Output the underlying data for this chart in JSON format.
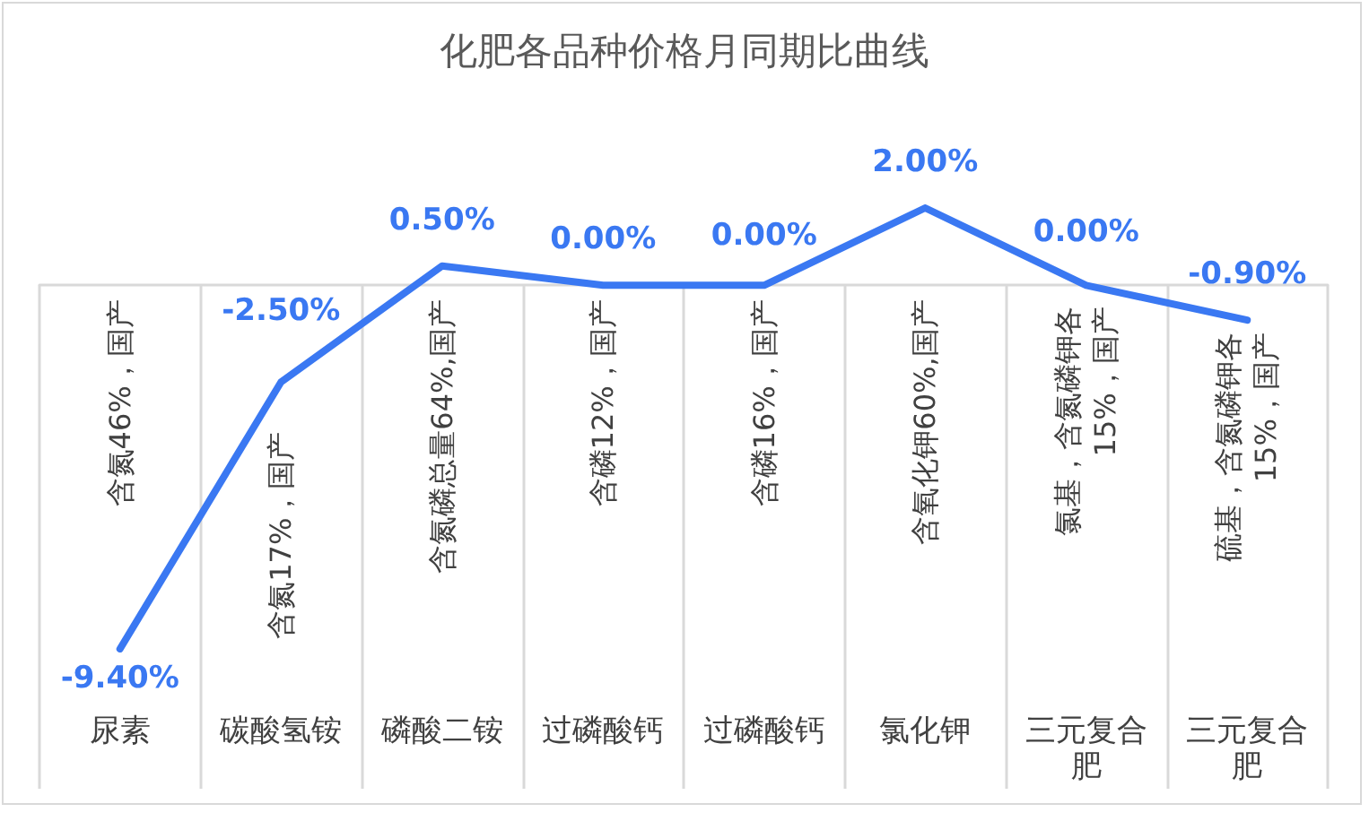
{
  "chart_data": {
    "type": "line",
    "title": "化肥各品种价格月同期比曲线",
    "categories": [
      "尿素",
      "碳酸氢铵",
      "磷酸二铵",
      "过磷酸钙",
      "过磷酸钙",
      "氯化钾",
      "三元复合肥",
      "三元复合肥"
    ],
    "values": [
      -9.4,
      -2.5,
      0.5,
      0,
      0,
      2,
      0,
      -0.9
    ],
    "value_labels": [
      "-9.40%",
      "-2.50%",
      "0.50%",
      "0.00%",
      "0.00%",
      "2.00%",
      "0.00%",
      "-0.90%"
    ],
    "color": "#3a78f2",
    "tick_labels": "x",
    "annotations": [
      "含氮46%，国产",
      "含氮17%，国产",
      "含氮磷总量64%,国产",
      "含磷12%，国产",
      "含磷16%，国产",
      "含氧化钾60%,国产",
      "氯基，含氮磷钾各\n15%，国产",
      "硫基，含氮磷钾各\n15%，国产"
    ]
  }
}
